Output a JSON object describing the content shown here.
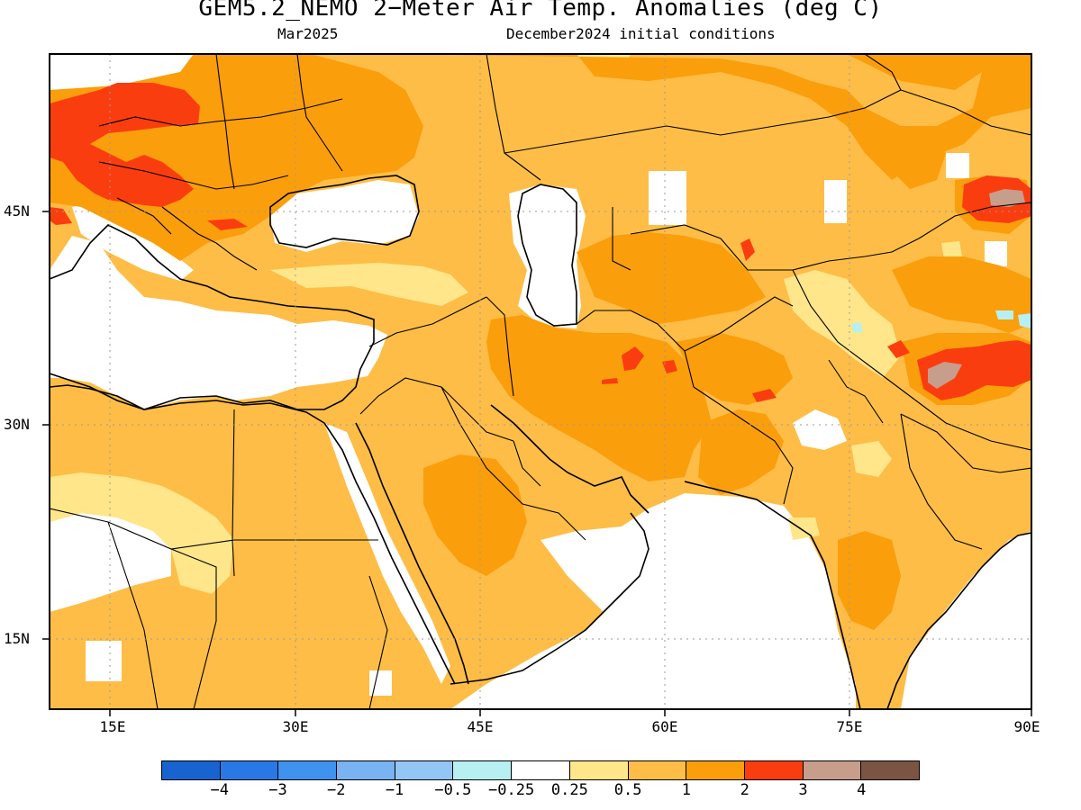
{
  "title": "GEM5.2_NEMO 2−Meter Air Temp. Anomalies (deg C)",
  "subtitle_left": "Mar2025",
  "subtitle_right": "December2024 initial conditions",
  "axes": {
    "lat_labels": [
      "45N",
      "30N",
      "15N"
    ],
    "lon_labels": [
      "15E",
      "30E",
      "45E",
      "60E",
      "75E",
      "90E"
    ],
    "lon_range": [
      10,
      90
    ],
    "lat_range": [
      10,
      53
    ]
  },
  "colorbar": {
    "colors": [
      "#1763d0",
      "#2a78e6",
      "#3f92ee",
      "#79b3f2",
      "#93c6f5",
      "#b6f0f2",
      "#ffffff",
      "#ffe68a",
      "#fdbd47",
      "#fa9e0c",
      "#fa3d0f",
      "#c79d8c",
      "#7b5443"
    ],
    "labels": [
      "−4",
      "−3",
      "−2",
      "−1",
      "−0.5",
      "−0.25",
      "0.25",
      "0.5",
      "1",
      "2",
      "3",
      "4"
    ]
  },
  "legend_colors": {
    "white": "#ffffff",
    "light_yellow": "#ffe68a",
    "light_orange": "#fdbd47",
    "orange": "#fa9e0c",
    "red": "#fa3d0f",
    "pinkish_brown": "#c79d8c",
    "light_blue": "#b6f0f2"
  }
}
